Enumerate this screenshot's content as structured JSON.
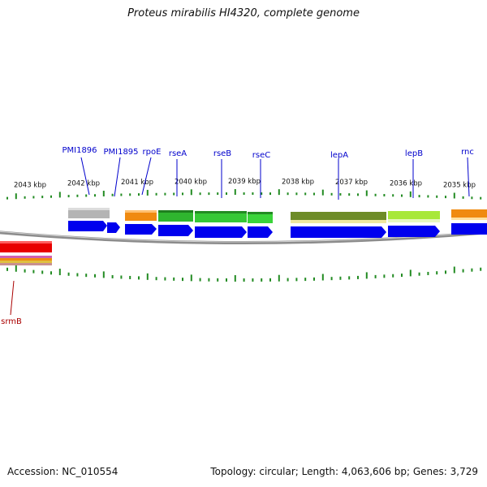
{
  "title": "Proteus mirabilis HI4320, complete genome",
  "footer": {
    "accession": "Accession: NC_010554",
    "topology": "Topology: circular; Length: 4,063,606 bp; Genes: 3,729"
  },
  "colors": {
    "cds_arrow": "#0000ee",
    "gene_label": "#0000cc",
    "rna_label": "#aa0000",
    "tick": "#228b22",
    "backbone": "#8c8c8c"
  },
  "scale_labels": [
    "2043 kbp",
    "2042 kbp",
    "2041 kbp",
    "2040 kbp",
    "2039 kbp",
    "2038 kbp",
    "2037 kbp",
    "2036 kbp",
    "2035 kbp"
  ],
  "genes": [
    {
      "label": "PMI1896",
      "color": "#b4b4b4"
    },
    {
      "label": "PMI1895",
      "color": "#b4b4b4"
    },
    {
      "label": "rpoE",
      "color": "#f08a10"
    },
    {
      "label": "rseA",
      "color": "#2fb52f"
    },
    {
      "label": "rseB",
      "color": "#36c836"
    },
    {
      "label": "rseC",
      "color": "#3ad43a"
    },
    {
      "label": "lepA",
      "color": "#6e8c28"
    },
    {
      "label": "lepB",
      "color": "#a8e83a"
    },
    {
      "label": "rnc",
      "color": "#f08a10"
    }
  ],
  "other_features": [
    {
      "label": "srmB",
      "color": "#e80000"
    }
  ]
}
